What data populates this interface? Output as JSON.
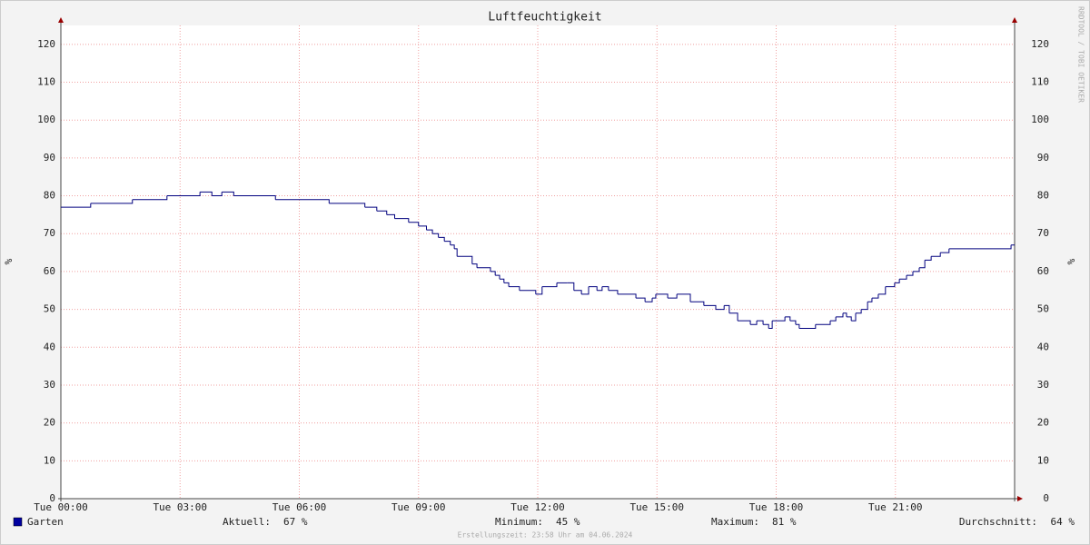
{
  "chart_data": {
    "type": "line",
    "title": "Luftfeuchtigkeit",
    "ylabel": "%",
    "y2label": "%",
    "watermark": "RRDTOOL / TOBI OETIKER",
    "x": [
      0,
      0.75,
      1.8,
      2.67,
      3.5,
      3.8,
      4.05,
      4.35,
      5.4,
      6.75,
      7.65,
      7.95,
      8.2,
      8.4,
      8.75,
      9.0,
      9.2,
      9.35,
      9.5,
      9.65,
      9.8,
      9.9,
      9.97,
      10.35,
      10.47,
      10.81,
      10.93,
      11.04,
      11.15,
      11.27,
      11.54,
      11.95,
      12.11,
      12.48,
      12.75,
      12.91,
      13.1,
      13.28,
      13.49,
      13.62,
      13.78,
      14.01,
      14.47,
      14.7,
      14.88,
      14.97,
      15.27,
      15.5,
      15.84,
      16.18,
      16.48,
      16.69,
      16.82,
      17.03,
      17.35,
      17.51,
      17.67,
      17.81,
      17.9,
      18.22,
      18.35,
      18.49,
      18.58,
      18.99,
      19.36,
      19.5,
      19.68,
      19.77,
      19.89,
      20.0,
      20.14,
      20.3,
      20.41,
      20.57,
      20.75,
      20.98,
      21.1,
      21.28,
      21.44,
      21.6,
      21.74,
      21.9,
      22.13,
      22.35,
      23.91
    ],
    "series": [
      {
        "name": "Garten",
        "color": "#00007f",
        "values": [
          77,
          78,
          79,
          80,
          81,
          80,
          81,
          80,
          79,
          78,
          77,
          76,
          75,
          74,
          73,
          72,
          71,
          70,
          69,
          68,
          67,
          66,
          64,
          62,
          61,
          60,
          59,
          58,
          57,
          56,
          55,
          54,
          56,
          57,
          57,
          55,
          54,
          56,
          55,
          56,
          55,
          54,
          53,
          52,
          53,
          54,
          53,
          54,
          52,
          51,
          50,
          51,
          49,
          47,
          46,
          47,
          46,
          45,
          47,
          48,
          47,
          46,
          45,
          46,
          47,
          48,
          49,
          48,
          47,
          49,
          50,
          52,
          53,
          54,
          56,
          57,
          58,
          59,
          60,
          61,
          63,
          64,
          65,
          66,
          67
        ]
      }
    ],
    "xlim": [
      0,
      24
    ],
    "ylim": [
      0,
      125
    ],
    "xticks": [
      {
        "value": 0,
        "label": "Tue 00:00"
      },
      {
        "value": 3,
        "label": "Tue 03:00"
      },
      {
        "value": 6,
        "label": "Tue 06:00"
      },
      {
        "value": 9,
        "label": "Tue 09:00"
      },
      {
        "value": 12,
        "label": "Tue 12:00"
      },
      {
        "value": 15,
        "label": "Tue 15:00"
      },
      {
        "value": 18,
        "label": "Tue 18:00"
      },
      {
        "value": 21,
        "label": "Tue 21:00"
      }
    ],
    "yticks": [
      0,
      10,
      20,
      30,
      40,
      50,
      60,
      70,
      80,
      90,
      100,
      110,
      120
    ],
    "grid": true,
    "legend_color": "#0000a0",
    "stats": [
      {
        "label": "Aktuell:",
        "text": "67 %"
      },
      {
        "label": "Minimum:",
        "text": "45 %"
      },
      {
        "label": "Maximum:",
        "text": "81 %"
      },
      {
        "label": "Durchschnitt:",
        "text": "64 %"
      }
    ],
    "footer": "Erstellungszeit: 23:58 Uhr am 04.06.2024"
  }
}
